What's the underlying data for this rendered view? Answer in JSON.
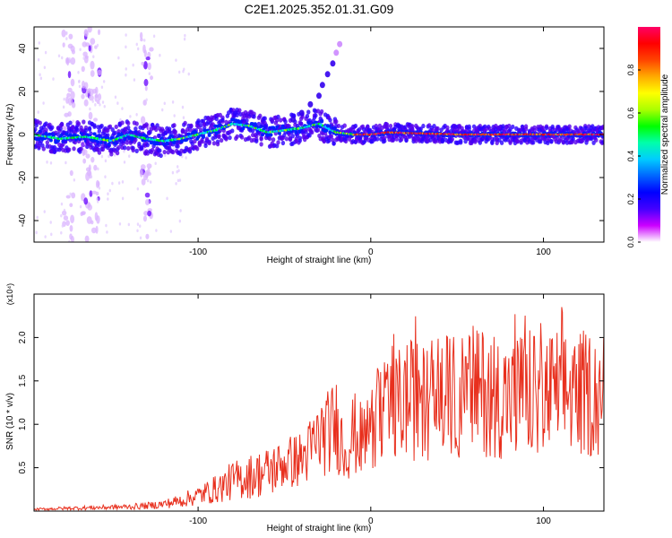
{
  "figure_title": "C2E1.2025.352.01.31.G09",
  "chart_data": [
    {
      "type": "heatmap",
      "title": "C2E1.2025.352.01.31.G09",
      "xlabel": "Height of straight line (km)",
      "ylabel": "Frequency (Hz)",
      "xlim": [
        -195,
        135
      ],
      "ylim": [
        -50,
        50
      ],
      "xticks": [
        -100,
        0,
        100
      ],
      "yticks": [
        -40,
        -20,
        0,
        20,
        40
      ],
      "colorbar": {
        "label": "Normalized spectral amplitude",
        "range": [
          0.0,
          1.0
        ],
        "ticks": [
          0.0,
          0.2,
          0.4,
          0.6,
          0.8
        ],
        "colors": [
          "#ffffff",
          "#cc00ff",
          "#4400ff",
          "#0000ff",
          "#0066ff",
          "#00ccff",
          "#00ffaa",
          "#00ff00",
          "#aaff00",
          "#ffff00",
          "#ffaa00",
          "#ff4400",
          "#ff0000",
          "#ff0066"
        ]
      },
      "ridge": {
        "x": [
          -195,
          -180,
          -165,
          -150,
          -140,
          -130,
          -120,
          -110,
          -100,
          -90,
          -80,
          -70,
          -60,
          -50,
          -40,
          -30,
          -25,
          -20,
          -10,
          0,
          10,
          50,
          100,
          135
        ],
        "y": [
          0,
          -2,
          -1,
          -3,
          0,
          -2,
          -3,
          -2,
          0,
          2,
          5,
          4,
          1,
          2,
          3,
          5,
          3,
          1,
          0,
          0,
          1,
          0,
          0,
          0
        ]
      },
      "secondary_branch": {
        "x": [
          -45,
          -40,
          -35,
          -30,
          -28,
          -25,
          -22,
          -20,
          -18
        ],
        "y": [
          7,
          10,
          14,
          18,
          23,
          28,
          33,
          38,
          42
        ]
      }
    },
    {
      "type": "line",
      "xlabel": "Height of straight line (km)",
      "ylabel": "SNR (10 * v/v)",
      "yscale_label": "(x10⁴)",
      "xlim": [
        -195,
        135
      ],
      "ylim": [
        0,
        2.5
      ],
      "xticks": [
        -100,
        0,
        100
      ],
      "yticks": [
        0.5,
        1.0,
        1.5,
        2.0
      ],
      "ytick_labels": [
        "0.5",
        "1.0",
        "1.5",
        "2.0"
      ],
      "color": "#e8301e",
      "series": [
        {
          "name": "SNR",
          "x": [
            -195,
            -180,
            -160,
            -140,
            -130,
            -120,
            -110,
            -100,
            -90,
            -80,
            -70,
            -60,
            -50,
            -40,
            -35,
            -30,
            -25,
            -20,
            -15,
            -10,
            -5,
            0,
            10,
            20,
            30,
            40,
            50,
            60,
            70,
            80,
            90,
            100,
            110,
            120,
            135
          ],
          "values": [
            0.02,
            0.03,
            0.04,
            0.05,
            0.06,
            0.08,
            0.12,
            0.18,
            0.25,
            0.35,
            0.4,
            0.45,
            0.55,
            0.6,
            0.7,
            0.85,
            0.9,
            1.0,
            0.7,
            0.9,
            0.8,
            1.0,
            1.1,
            1.3,
            1.25,
            1.35,
            1.3,
            1.4,
            1.35,
            1.3,
            1.35,
            1.3,
            1.4,
            1.35,
            1.35
          ]
        }
      ]
    }
  ]
}
